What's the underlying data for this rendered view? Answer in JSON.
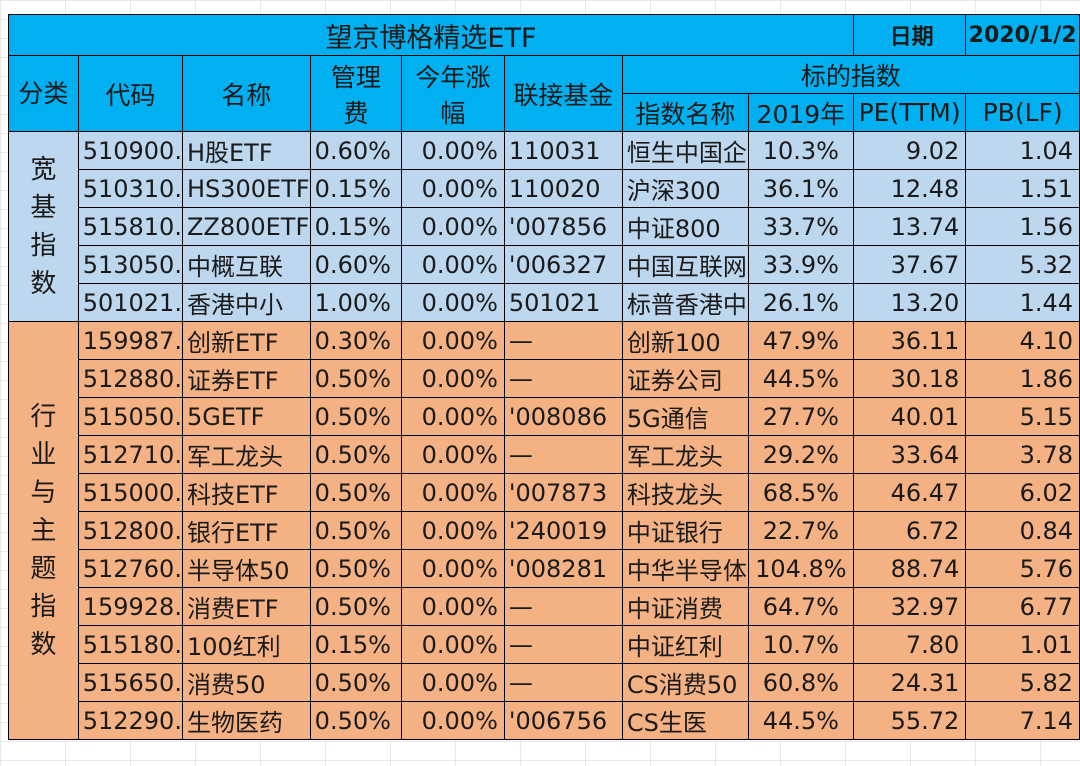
{
  "title": "望京博格精选ETF",
  "date_label": "日期",
  "date_value": "2020/1/2",
  "headers": {
    "category": "分类",
    "code": "代码",
    "name": "名称",
    "fee": [
      "管理",
      "费"
    ],
    "ytd": [
      "今年涨",
      "幅"
    ],
    "feeder": "联接基金",
    "index_group": "标的指数",
    "index_name": "指数名称",
    "y2019": "2019年",
    "pe": "PE(TTM)",
    "pb": "PB(LF)"
  },
  "categories": {
    "broad": [
      "宽",
      "基",
      "指",
      "数"
    ],
    "sector": [
      "行",
      "业",
      "与",
      "主",
      "题",
      "指",
      "数"
    ]
  },
  "broad_rows": [
    {
      "code": "510900.",
      "name": "H股ETF",
      "fee": "0.60%",
      "ytd": "0.00%",
      "feeder": "110031",
      "index": "恒生中国企",
      "y2019": "10.3%",
      "pe": "9.02",
      "pb": "1.04"
    },
    {
      "code": "510310.",
      "name": "HS300ETF",
      "fee": "0.15%",
      "ytd": "0.00%",
      "feeder": "110020",
      "index": "沪深300",
      "y2019": "36.1%",
      "pe": "12.48",
      "pb": "1.51"
    },
    {
      "code": "515810.",
      "name": "ZZ800ETF",
      "fee": "0.15%",
      "ytd": "0.00%",
      "feeder": "'007856",
      "index": "中证800",
      "y2019": "33.7%",
      "pe": "13.74",
      "pb": "1.56"
    },
    {
      "code": "513050.",
      "name": "中概互联",
      "fee": "0.60%",
      "ytd": "0.00%",
      "feeder": "'006327",
      "index": "中国互联网",
      "y2019": "33.9%",
      "pe": "37.67",
      "pb": "5.32"
    },
    {
      "code": "501021.",
      "name": "香港中小",
      "fee": "1.00%",
      "ytd": "0.00%",
      "feeder": "501021",
      "index": "标普香港中",
      "y2019": "26.1%",
      "pe": "13.20",
      "pb": "1.44"
    }
  ],
  "sector_rows": [
    {
      "code": "159987.",
      "name": "创新ETF",
      "fee": "0.30%",
      "ytd": "0.00%",
      "feeder": "—",
      "index": "创新100",
      "y2019": "47.9%",
      "pe": "36.11",
      "pb": "4.10"
    },
    {
      "code": "512880.",
      "name": "证券ETF",
      "fee": "0.50%",
      "ytd": "0.00%",
      "feeder": "—",
      "index": "证券公司",
      "y2019": "44.5%",
      "pe": "30.18",
      "pb": "1.86"
    },
    {
      "code": "515050.",
      "name": "5GETF",
      "fee": "0.50%",
      "ytd": "0.00%",
      "feeder": "'008086",
      "index": "5G通信",
      "y2019": "27.7%",
      "pe": "40.01",
      "pb": "5.15"
    },
    {
      "code": "512710.",
      "name": "军工龙头",
      "fee": "0.50%",
      "ytd": "0.00%",
      "feeder": "—",
      "index": "军工龙头",
      "y2019": "29.2%",
      "pe": "33.64",
      "pb": "3.78"
    },
    {
      "code": "515000.",
      "name": "科技ETF",
      "fee": "0.50%",
      "ytd": "0.00%",
      "feeder": "'007873",
      "index": "科技龙头",
      "y2019": "68.5%",
      "pe": "46.47",
      "pb": "6.02"
    },
    {
      "code": "512800.",
      "name": "银行ETF",
      "fee": "0.50%",
      "ytd": "0.00%",
      "feeder": "'240019",
      "index": "中证银行",
      "y2019": "22.7%",
      "pe": "6.72",
      "pb": "0.84"
    },
    {
      "code": "512760.",
      "name": "半导体50",
      "fee": "0.50%",
      "ytd": "0.00%",
      "feeder": "'008281",
      "index": "中华半导体",
      "y2019": "104.8%",
      "pe": "88.74",
      "pb": "5.76"
    },
    {
      "code": "159928.",
      "name": "消费ETF",
      "fee": "0.50%",
      "ytd": "0.00%",
      "feeder": "—",
      "index": "中证消费",
      "y2019": "64.7%",
      "pe": "32.97",
      "pb": "6.77"
    },
    {
      "code": "515180.",
      "name": "100红利",
      "fee": "0.15%",
      "ytd": "0.00%",
      "feeder": "—",
      "index": "中证红利",
      "y2019": "10.7%",
      "pe": "7.80",
      "pb": "1.01"
    },
    {
      "code": "515650.",
      "name": "消费50",
      "fee": "0.50%",
      "ytd": "0.00%",
      "feeder": "—",
      "index": "CS消费50",
      "y2019": "60.8%",
      "pe": "24.31",
      "pb": "5.82"
    },
    {
      "code": "512290.",
      "name": "生物医药",
      "fee": "0.50%",
      "ytd": "0.00%",
      "feeder": "'006756",
      "index": "CS生医",
      "y2019": "44.5%",
      "pe": "55.72",
      "pb": "7.14"
    }
  ]
}
